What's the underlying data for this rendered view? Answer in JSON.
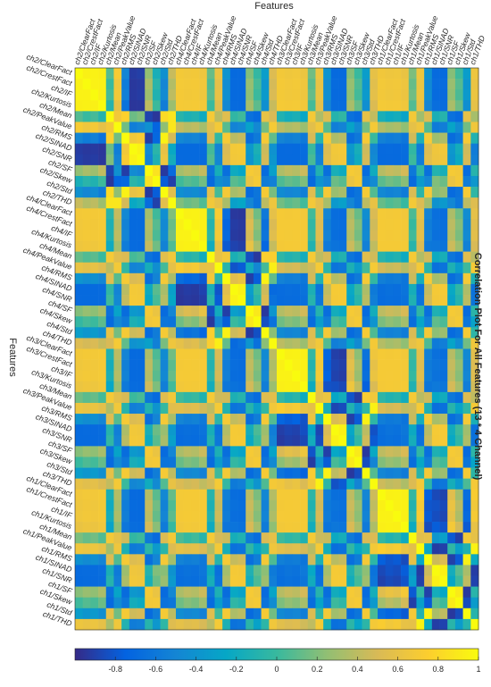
{
  "chart_data": {
    "type": "heatmap",
    "title": "Correlation Plot For All Features (13 * 4 Channel)",
    "xlabel": "Features",
    "ylabel": "Features",
    "labels": [
      "ch2/ClearFact",
      "ch2/CrestFact",
      "ch2/IF",
      "ch2/Kurtosis",
      "ch2/Mean",
      "ch2/PeakValue",
      "ch2/RMS",
      "ch2/SINAD",
      "ch2/SNR",
      "ch2/SF",
      "ch2/Skew",
      "ch2/Std",
      "ch2/THD",
      "ch4/ClearFact",
      "ch4/CrestFact",
      "ch4/IF",
      "ch4/Kurtosis",
      "ch4/Mean",
      "ch4/PeakValue",
      "ch4/RMS",
      "ch4/SINAD",
      "ch4/SNR",
      "ch4/SF",
      "ch4/Skew",
      "ch4/Std",
      "ch4/THD",
      "ch3/ClearFact",
      "ch3/CrestFact",
      "ch3/IF",
      "ch3/Kurtosis",
      "ch3/Mean",
      "ch3/PeakValue",
      "ch3/RMS",
      "ch3/SINAD",
      "ch3/SNR",
      "ch3/SF",
      "ch3/Skew",
      "ch3/Std",
      "ch3/THD",
      "ch1/ClearFact",
      "ch1/CrestFact",
      "ch1/IF",
      "ch1/Kurtosis",
      "ch1/Mean",
      "ch1/PeakValue",
      "ch1/RMS",
      "ch1/SINAD",
      "ch1/SNR",
      "ch1/SF",
      "ch1/Skew",
      "ch1/Std",
      "ch1/THD"
    ],
    "colorbar": {
      "colormap": "parula",
      "limits": [
        -1,
        1
      ],
      "ticks": [
        "-0.8",
        "-0.6",
        "-0.4",
        "-0.2",
        "0",
        "0.2",
        "0.4",
        "0.6",
        "0.8",
        "1"
      ],
      "colors": [
        "#352a87",
        "#0363e1",
        "#1485d4",
        "#06a7c6",
        "#38b99e",
        "#92bf73",
        "#d9ba56",
        "#fcce2e",
        "#f9fb0e"
      ]
    },
    "grid": false,
    "layout_note": "rotated",
    "values": "generated"
  }
}
